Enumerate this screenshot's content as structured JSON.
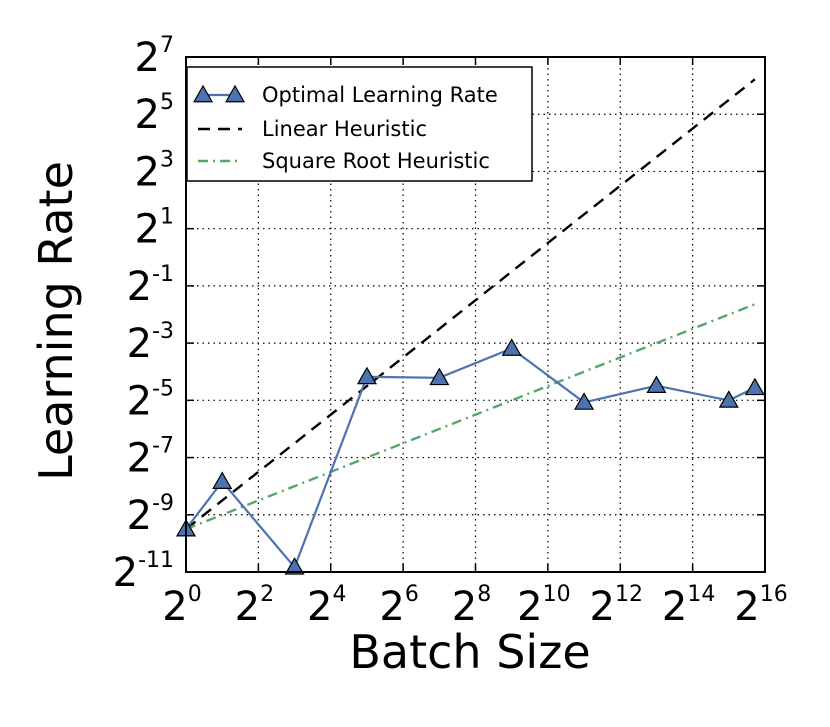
{
  "chart_data": {
    "type": "line",
    "x_scale": "log2",
    "y_scale": "log2",
    "xlabel": "Batch Size",
    "ylabel": "Learning Rate",
    "xlim": [
      1,
      65536
    ],
    "ylim": [
      0.00048828125,
      128
    ],
    "grid": true,
    "legend_position": "top-left",
    "x_ticks": [
      {
        "base": "2",
        "exp": "0",
        "value": 1
      },
      {
        "base": "2",
        "exp": "2",
        "value": 4
      },
      {
        "base": "2",
        "exp": "4",
        "value": 16
      },
      {
        "base": "2",
        "exp": "6",
        "value": 64
      },
      {
        "base": "2",
        "exp": "8",
        "value": 256
      },
      {
        "base": "2",
        "exp": "10",
        "value": 1024
      },
      {
        "base": "2",
        "exp": "12",
        "value": 4096
      },
      {
        "base": "2",
        "exp": "14",
        "value": 16384
      },
      {
        "base": "2",
        "exp": "16",
        "value": 65536
      }
    ],
    "y_ticks": [
      {
        "base": "2",
        "exp": "-11",
        "value": 0.00048828125
      },
      {
        "base": "2",
        "exp": "-9",
        "value": 0.001953125
      },
      {
        "base": "2",
        "exp": "-7",
        "value": 0.0078125
      },
      {
        "base": "2",
        "exp": "-5",
        "value": 0.03125
      },
      {
        "base": "2",
        "exp": "-3",
        "value": 0.125
      },
      {
        "base": "2",
        "exp": "-1",
        "value": 0.5
      },
      {
        "base": "2",
        "exp": "1",
        "value": 2
      },
      {
        "base": "2",
        "exp": "3",
        "value": 8
      },
      {
        "base": "2",
        "exp": "5",
        "value": 32
      },
      {
        "base": "2",
        "exp": "7",
        "value": 128
      }
    ],
    "series": [
      {
        "name": "Optimal Learning Rate",
        "color": "#4c72b0",
        "style": "solid",
        "marker": "triangle",
        "x": [
          1,
          2,
          8,
          32,
          128,
          512,
          2048,
          8192,
          32768,
          54000
        ],
        "y": [
          0.00138,
          0.00436,
          0.000547,
          0.0552,
          0.0539,
          0.1097,
          0.0297,
          0.0446,
          0.0312,
          0.0423
        ]
      },
      {
        "name": "Linear Heuristic",
        "color": "#000000",
        "style": "dashed",
        "x": [
          1,
          54000
        ],
        "y": [
          0.00138,
          74.5
        ]
      },
      {
        "name": "Square Root Heuristic",
        "color": "#55a868",
        "style": "dashdot",
        "x": [
          1,
          54000
        ],
        "y": [
          0.00138,
          0.321
        ]
      }
    ]
  }
}
